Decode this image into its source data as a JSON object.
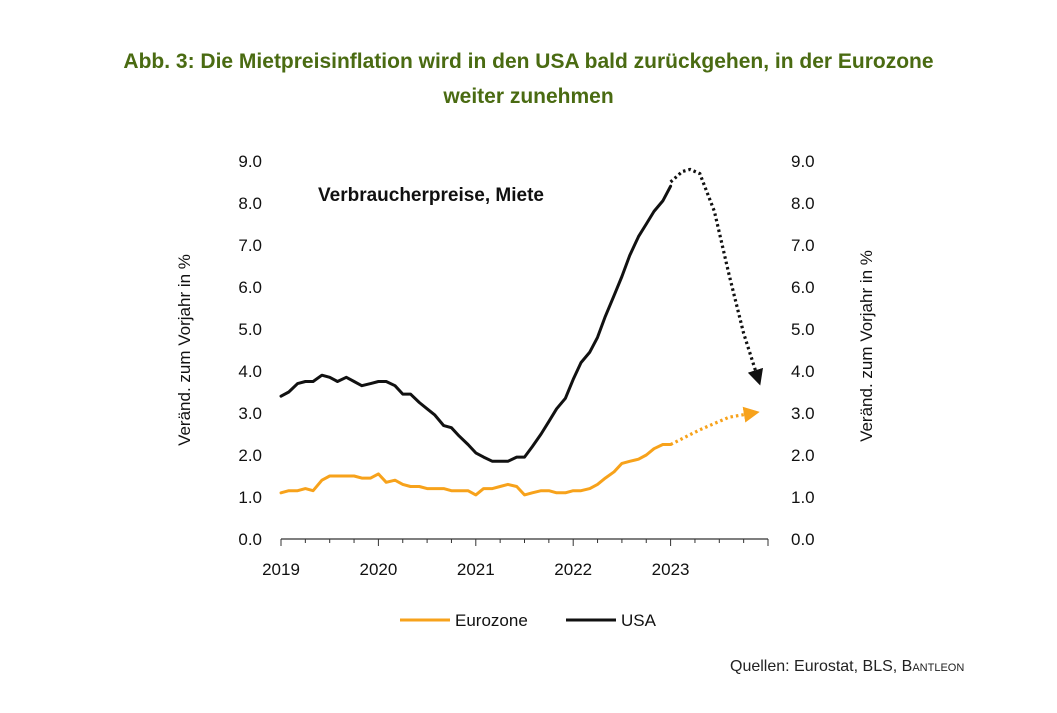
{
  "figure": {
    "title_line1": "Abb. 3: Die Mietpreisinflation wird in den USA bald zurückgehen, in der Eurozone",
    "title_line2": "weiter zunehmen",
    "source_prefix": "Quellen: Eurostat, BLS, ",
    "source_brand": "Bantleon"
  },
  "chart_data": {
    "type": "line",
    "title": "Verbraucherpreise, Miete",
    "ylabel_left": "Veränd. zum Vorjahr in %",
    "ylabel_right": "Veränd. zum Vorjahr in %",
    "ylim": [
      0,
      9
    ],
    "yticks": [
      "0.0",
      "1.0",
      "2.0",
      "3.0",
      "4.0",
      "5.0",
      "6.0",
      "7.0",
      "8.0",
      "9.0"
    ],
    "xlim": [
      2019,
      2024
    ],
    "xticks": [
      "2019",
      "2020",
      "2021",
      "2022",
      "2023"
    ],
    "legend_position": "bottom",
    "series": [
      {
        "name": "Eurozone",
        "color": "#f7a21b",
        "x": [
          2019.0,
          2019.08,
          2019.17,
          2019.25,
          2019.33,
          2019.42,
          2019.5,
          2019.58,
          2019.67,
          2019.75,
          2019.83,
          2019.92,
          2020.0,
          2020.08,
          2020.17,
          2020.25,
          2020.33,
          2020.42,
          2020.5,
          2020.58,
          2020.67,
          2020.75,
          2020.83,
          2020.92,
          2021.0,
          2021.08,
          2021.17,
          2021.25,
          2021.33,
          2021.42,
          2021.5,
          2021.58,
          2021.67,
          2021.75,
          2021.83,
          2021.92,
          2022.0,
          2022.08,
          2022.17,
          2022.25,
          2022.33,
          2022.42,
          2022.5,
          2022.58,
          2022.67,
          2022.75,
          2022.83,
          2022.92,
          2023.0
        ],
        "y": [
          1.1,
          1.15,
          1.15,
          1.2,
          1.15,
          1.4,
          1.5,
          1.5,
          1.5,
          1.5,
          1.45,
          1.45,
          1.55,
          1.35,
          1.4,
          1.3,
          1.25,
          1.25,
          1.2,
          1.2,
          1.2,
          1.15,
          1.15,
          1.15,
          1.05,
          1.2,
          1.2,
          1.25,
          1.3,
          1.25,
          1.05,
          1.1,
          1.15,
          1.15,
          1.1,
          1.1,
          1.15,
          1.15,
          1.2,
          1.3,
          1.45,
          1.6,
          1.8,
          1.85,
          1.9,
          2.0,
          2.15,
          2.25,
          2.25
        ],
        "forecast": {
          "x": [
            2023.0,
            2023.3,
            2023.6,
            2023.85
          ],
          "y": [
            2.25,
            2.6,
            2.9,
            3.0
          ]
        }
      },
      {
        "name": "USA",
        "color": "#111111",
        "x": [
          2019.0,
          2019.08,
          2019.17,
          2019.25,
          2019.33,
          2019.42,
          2019.5,
          2019.58,
          2019.67,
          2019.75,
          2019.83,
          2019.92,
          2020.0,
          2020.08,
          2020.17,
          2020.25,
          2020.33,
          2020.42,
          2020.5,
          2020.58,
          2020.67,
          2020.75,
          2020.83,
          2020.92,
          2021.0,
          2021.08,
          2021.17,
          2021.25,
          2021.33,
          2021.42,
          2021.5,
          2021.58,
          2021.67,
          2021.75,
          2021.83,
          2021.92,
          2022.0,
          2022.08,
          2022.17,
          2022.25,
          2022.33,
          2022.42,
          2022.5,
          2022.58,
          2022.67,
          2022.75,
          2022.83,
          2022.92,
          2023.0
        ],
        "y": [
          3.4,
          3.5,
          3.7,
          3.75,
          3.75,
          3.9,
          3.85,
          3.75,
          3.85,
          3.75,
          3.65,
          3.7,
          3.75,
          3.75,
          3.65,
          3.45,
          3.45,
          3.25,
          3.1,
          2.95,
          2.7,
          2.65,
          2.45,
          2.25,
          2.05,
          1.95,
          1.85,
          1.85,
          1.85,
          1.95,
          1.95,
          2.2,
          2.5,
          2.8,
          3.1,
          3.35,
          3.8,
          4.2,
          4.45,
          4.8,
          5.3,
          5.8,
          6.25,
          6.75,
          7.2,
          7.5,
          7.8,
          8.05,
          8.4
        ],
        "forecast": {
          "x": [
            2023.0,
            2023.12,
            2023.2,
            2023.3,
            2023.45,
            2023.6,
            2023.75,
            2023.9
          ],
          "y": [
            8.5,
            8.75,
            8.8,
            8.7,
            7.8,
            6.3,
            4.9,
            3.8
          ]
        }
      }
    ]
  }
}
